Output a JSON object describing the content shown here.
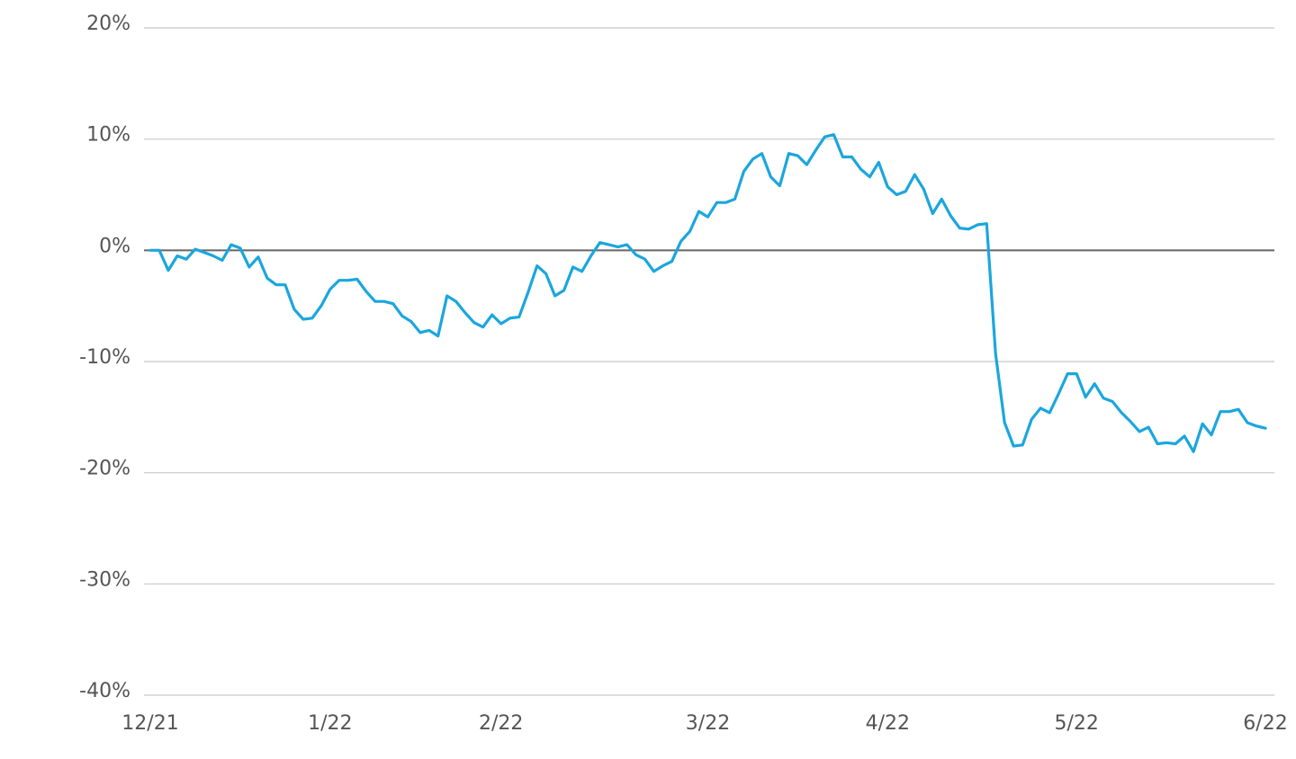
{
  "chart_data": {
    "type": "line",
    "categories": [
      "12/21",
      null,
      null,
      null,
      null,
      null,
      null,
      null,
      null,
      null,
      null,
      null,
      null,
      null,
      null,
      null,
      null,
      null,
      null,
      null,
      "1/22",
      null,
      null,
      null,
      null,
      null,
      null,
      null,
      null,
      null,
      null,
      null,
      null,
      null,
      null,
      null,
      null,
      null,
      null,
      "2/22",
      null,
      null,
      null,
      null,
      null,
      null,
      null,
      null,
      null,
      null,
      null,
      null,
      null,
      null,
      null,
      null,
      null,
      null,
      null,
      null,
      null,
      null,
      "3/22",
      null,
      null,
      null,
      null,
      null,
      null,
      null,
      null,
      null,
      null,
      null,
      null,
      null,
      null,
      null,
      null,
      null,
      null,
      null,
      "4/22",
      null,
      null,
      null,
      null,
      null,
      null,
      null,
      null,
      null,
      null,
      null,
      null,
      null,
      null,
      null,
      null,
      null,
      null,
      null,
      null,
      "5/22",
      null,
      null,
      null,
      null,
      null,
      null,
      null,
      null,
      null,
      null,
      null,
      null,
      null,
      null,
      null,
      null,
      null,
      null,
      null,
      null,
      "6/22"
    ],
    "values": [
      0,
      0,
      -1.8,
      -0.5,
      -0.8,
      0.1,
      -0.2,
      -0.5,
      -0.9,
      0.5,
      0.2,
      -1.5,
      -0.6,
      -2.5,
      -3.1,
      -3.1,
      -5.3,
      -6.2,
      -6.1,
      -5.0,
      -3.5,
      -2.7,
      -2.7,
      -2.6,
      -3.7,
      -4.6,
      -4.6,
      -4.8,
      -5.9,
      -6.4,
      -7.4,
      -7.2,
      -7.7,
      -4.1,
      -4.6,
      -5.6,
      -6.5,
      -6.9,
      -5.8,
      -6.6,
      -6.1,
      -6.0,
      -3.8,
      -1.4,
      -2.1,
      -4.1,
      -3.6,
      -1.5,
      -1.9,
      -0.5,
      0.7,
      0.5,
      0.3,
      0.5,
      -0.4,
      -0.8,
      -1.9,
      -1.4,
      -1.0,
      0.8,
      1.7,
      3.5,
      3.0,
      4.3,
      4.3,
      4.6,
      7.1,
      8.2,
      8.7,
      6.6,
      5.8,
      8.7,
      8.5,
      7.7,
      9.0,
      10.2,
      10.4,
      8.4,
      8.4,
      7.3,
      6.6,
      7.9,
      5.7,
      5.0,
      5.3,
      6.8,
      5.5,
      3.3,
      4.6,
      3.1,
      2.0,
      1.9,
      2.3,
      2.4,
      -9.3,
      -15.5,
      -17.6,
      -17.5,
      -15.2,
      -14.2,
      -14.6,
      -12.9,
      -11.1,
      -11.1,
      -13.2,
      -12.0,
      -13.3,
      -13.6,
      -14.6,
      -15.4,
      -16.3,
      -15.9,
      -17.4,
      -17.3,
      -17.4,
      -16.7,
      -18.1,
      -15.6,
      -16.6,
      -14.5,
      -14.5,
      -14.3,
      -15.5,
      -15.8,
      -16.0
    ],
    "color": "#1ba6de",
    "ylim": [
      -40,
      20
    ],
    "yticks": [
      {
        "value": -40,
        "label": "-40%"
      },
      {
        "value": -30,
        "label": "-30%"
      },
      {
        "value": -20,
        "label": "-20%"
      },
      {
        "value": -10,
        "label": "-10%"
      },
      {
        "value": 0,
        "label": "0%"
      },
      {
        "value": 10,
        "label": "10%"
      },
      {
        "value": 20,
        "label": "20%"
      }
    ],
    "grid": true
  }
}
